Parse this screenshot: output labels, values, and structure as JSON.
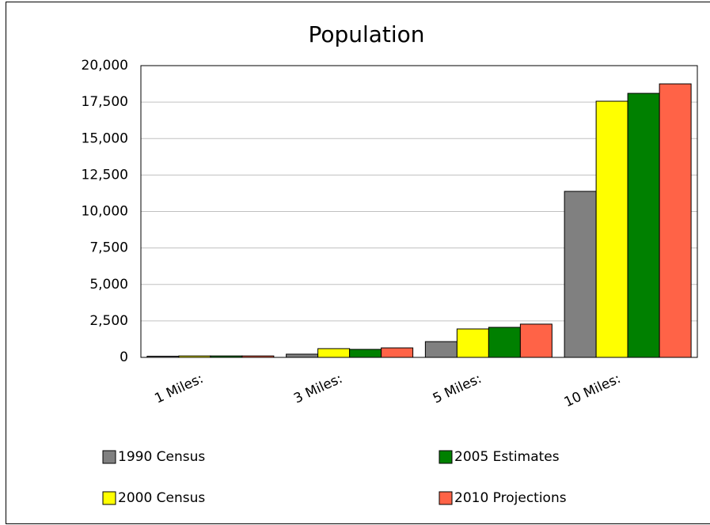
{
  "chart_data": {
    "type": "bar",
    "title": "Population",
    "categories": [
      "1 Miles:",
      "3 Miles:",
      "5 Miles:",
      "10 Miles:"
    ],
    "series": [
      {
        "name": "1990 Census",
        "color": "#808080",
        "values": [
          80,
          220,
          1080,
          11380
        ]
      },
      {
        "name": "2000 Census",
        "color": "#ffff00",
        "values": [
          100,
          600,
          1950,
          17560
        ]
      },
      {
        "name": "2005 Estimates",
        "color": "#008000",
        "values": [
          100,
          550,
          2060,
          18100
        ]
      },
      {
        "name": "2010 Projections",
        "color": "#ff6347",
        "values": [
          100,
          650,
          2280,
          18750
        ]
      }
    ],
    "ylim": [
      0,
      20000
    ],
    "yticks": [
      0,
      {
        "value": 2500,
        "label": "2,500"
      },
      {
        "value": 5000,
        "label": "5,000"
      },
      {
        "value": 7500,
        "label": "7,500"
      },
      {
        "value": 10000,
        "label": "10,000"
      },
      {
        "value": 12500,
        "label": "12,500"
      },
      {
        "value": 15000,
        "label": "15,000"
      },
      {
        "value": 17500,
        "label": "17,500"
      },
      {
        "value": 20000,
        "label": "20,000"
      }
    ],
    "grid": true
  }
}
